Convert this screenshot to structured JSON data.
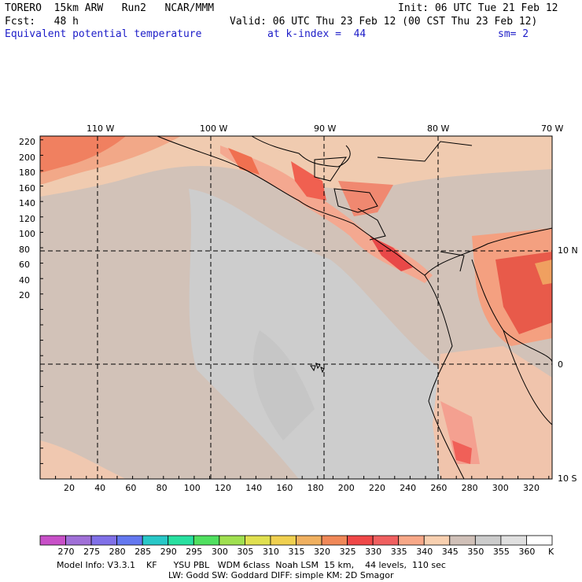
{
  "header": {
    "model": "TORERO  15km ARW   Run2   NCAR/MMM",
    "init": "Init: 06 UTC Tue 21 Feb 12",
    "fcst": "Fcst:   48 h",
    "valid": "Valid: 06 UTC Thu 23 Feb 12 (00 CST Thu 23 Feb 12)",
    "field": "Equivalent potential temperature",
    "level": "at k-index =  44",
    "smooth": "sm= 2"
  },
  "axes": {
    "top_lon_labels": [
      "110 W",
      "100 W",
      "90 W",
      "80 W",
      "70 W"
    ],
    "right_lat_labels": [
      "10 N",
      "0",
      "10 S"
    ],
    "left_y_ticks": [
      "220",
      "200",
      "180",
      "160",
      "140",
      "120",
      "100",
      "80",
      "60",
      "40",
      "20"
    ],
    "bottom_x_ticks": [
      "20",
      "40",
      "60",
      "80",
      "100",
      "120",
      "140",
      "160",
      "180",
      "200",
      "220",
      "240",
      "260",
      "280",
      "300",
      "320"
    ]
  },
  "colorbar": {
    "unit": "K",
    "labels": [
      "270",
      "275",
      "280",
      "285",
      "290",
      "295",
      "300",
      "305",
      "310",
      "315",
      "320",
      "325",
      "330",
      "335",
      "340",
      "345",
      "350",
      "355",
      "360"
    ],
    "colors": [
      "#c850c8",
      "#a070d8",
      "#8070e8",
      "#6478f0",
      "#28c8c8",
      "#28e0a0",
      "#50e060",
      "#a0e050",
      "#e0e050",
      "#f0d050",
      "#f0b060",
      "#f08858",
      "#f04848",
      "#f06060",
      "#f8a888",
      "#f8d0b0",
      "#d0c0b8",
      "#cccccc",
      "#e0e0e0",
      "#ffffff"
    ]
  },
  "footer": {
    "line1": "Model Info: V3.3.1    KF      YSU PBL   WDM 6class  Noah LSM  15 km,    44 levels,  110 sec",
    "line2": "LW: Godd SW: Goddard DIFF: simple KM: 2D Smagor"
  }
}
